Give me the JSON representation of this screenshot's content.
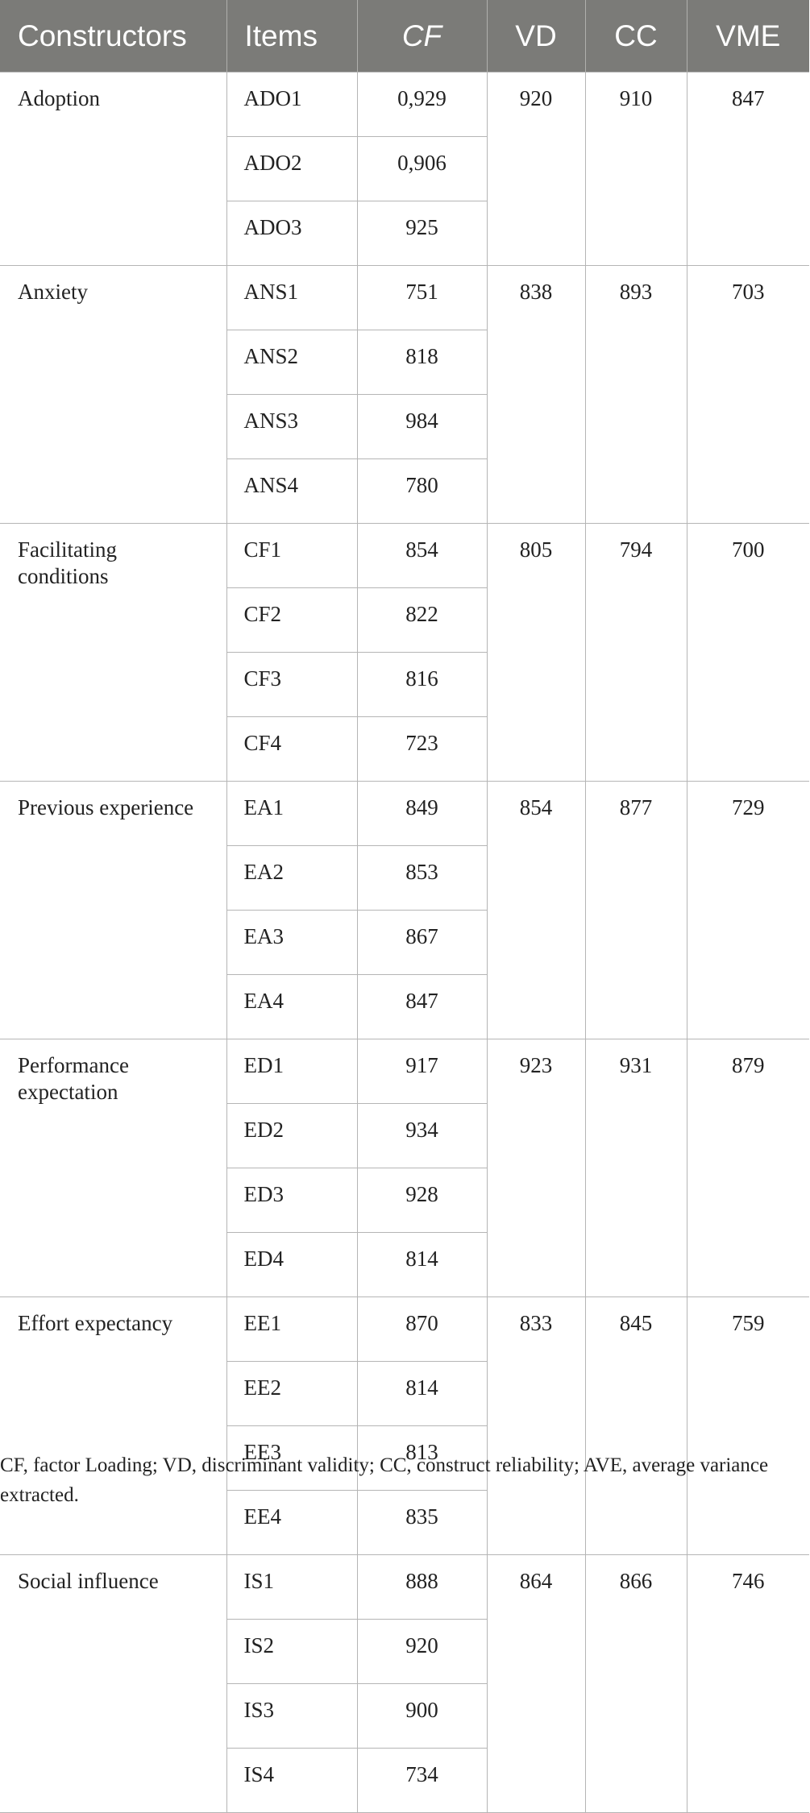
{
  "headers": {
    "constructors": "Constructors",
    "items": "Items",
    "cf": "CF",
    "vd": "VD",
    "cc": "CC",
    "vme": "VME"
  },
  "groups": [
    {
      "name": "Adoption",
      "vd": "920",
      "cc": "910",
      "vme": "847",
      "rows": [
        {
          "item": "ADO1",
          "cf": "0,929"
        },
        {
          "item": "ADO2",
          "cf": "0,906"
        },
        {
          "item": "ADO3",
          "cf": "925"
        }
      ]
    },
    {
      "name": "Anxiety",
      "vd": "838",
      "cc": "893",
      "vme": "703",
      "rows": [
        {
          "item": "ANS1",
          "cf": "751"
        },
        {
          "item": "ANS2",
          "cf": "818"
        },
        {
          "item": "ANS3",
          "cf": "984"
        },
        {
          "item": "ANS4",
          "cf": "780"
        }
      ]
    },
    {
      "name": "Facilitating conditions",
      "vd": "805",
      "cc": "794",
      "vme": "700",
      "rows": [
        {
          "item": "CF1",
          "cf": "854"
        },
        {
          "item": "CF2",
          "cf": "822"
        },
        {
          "item": "CF3",
          "cf": "816"
        },
        {
          "item": "CF4",
          "cf": "723"
        }
      ]
    },
    {
      "name": "Previous experience",
      "vd": "854",
      "cc": "877",
      "vme": "729",
      "rows": [
        {
          "item": "EA1",
          "cf": "849"
        },
        {
          "item": "EA2",
          "cf": "853"
        },
        {
          "item": "EA3",
          "cf": "867"
        },
        {
          "item": "EA4",
          "cf": "847"
        }
      ]
    },
    {
      "name": "Performance expectation",
      "vd": "923",
      "cc": "931",
      "vme": "879",
      "rows": [
        {
          "item": "ED1",
          "cf": "917"
        },
        {
          "item": "ED2",
          "cf": "934"
        },
        {
          "item": "ED3",
          "cf": "928"
        },
        {
          "item": "ED4",
          "cf": "814"
        }
      ]
    },
    {
      "name": "Effort expectancy",
      "vd": "833",
      "cc": "845",
      "vme": "759",
      "rows": [
        {
          "item": "EE1",
          "cf": "870"
        },
        {
          "item": "EE2",
          "cf": "814"
        },
        {
          "item": "EE3",
          "cf": "813"
        },
        {
          "item": "EE4",
          "cf": "835"
        }
      ]
    },
    {
      "name": "Social influence",
      "vd": "864",
      "cc": "866",
      "vme": "746",
      "rows": [
        {
          "item": "IS1",
          "cf": "888"
        },
        {
          "item": "IS2",
          "cf": "920"
        },
        {
          "item": "IS3",
          "cf": "900"
        },
        {
          "item": "IS4",
          "cf": "734"
        }
      ]
    }
  ],
  "footnote": "CF, factor Loading; VD, discriminant validity; CC, construct reliability; AVE, average variance extracted."
}
